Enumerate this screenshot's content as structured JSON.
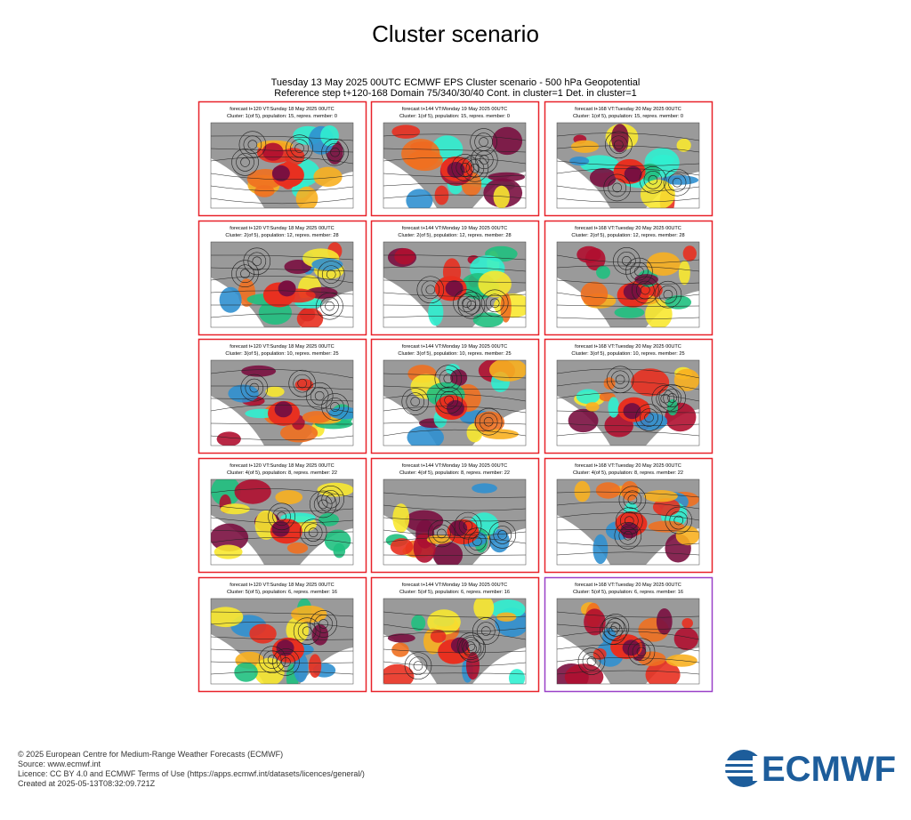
{
  "header": {
    "title": "Cluster scenario",
    "subtitle": [
      "Tuesday 13 May 2025 00UTC ECMWF EPS Cluster scenario - 500 hPa Geopotential",
      "Reference step t+120-168 Domain 75/340/30/40 Cont. in cluster=1 Det. in cluster=1"
    ]
  },
  "grid": {
    "columns": [
      "forecast t+120 VT:Sunday 18 May 2025 00UTC",
      "forecast t+144 VT:Monday 19 May 2025 00UTC",
      "forecast t+168 VT:Tuesday 20 May 2025 00UTC"
    ],
    "rows": [
      {
        "cluster": "Cluster: 1(of 5), population: 15, repres. member: 0",
        "borders": [
          "#e8222a",
          "#e8222a",
          "#e8222a"
        ]
      },
      {
        "cluster": "Cluster: 2(of 5), population: 12, repres. member: 28",
        "borders": [
          "#e8222a",
          "#e8222a",
          "#e8222a"
        ]
      },
      {
        "cluster": "Cluster: 3(of 5), population: 10, repres. member: 25",
        "borders": [
          "#e8222a",
          "#e8222a",
          "#e8222a"
        ]
      },
      {
        "cluster": "Cluster: 4(of 5), population: 8, repres. member: 22",
        "borders": [
          "#e8222a",
          "#e8222a",
          "#e8222a"
        ]
      },
      {
        "cluster": "Cluster: 5(of 5), population: 6, repres. member: 16",
        "borders": [
          "#e8222a",
          "#e8222a",
          "#9a40c8"
        ]
      }
    ]
  },
  "footer": [
    "© 2025 European Centre for Medium-Range Weather Forecasts (ECMWF)",
    "Source: www.ecmwf.int",
    "Licence: CC BY 4.0 and ECMWF Terms of Use (https://apps.ecmwf.int/datasets/licences/general/)",
    "Created at 2025-05-13T08:32:09.721Z"
  ],
  "logo": "ECMWF"
}
